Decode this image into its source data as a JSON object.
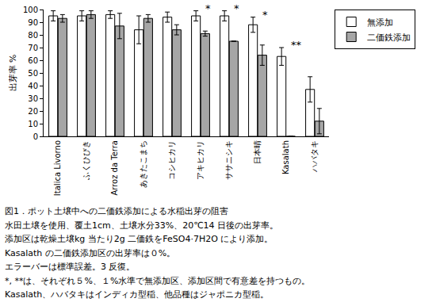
{
  "chart_data": {
    "type": "bar",
    "title": "図1．ポット土壌中への二価鉄添加による水稲出芽の阻害",
    "notes": [
      "水田土壌を使用、覆土1cm、土壌水分33%、20℃14 日後の出芽率。",
      "添加区は乾燥土壌kg 当たり2g 二価鉄をFeSO4·7H2O により添加。",
      "Kasalath の二価鉄添加区の出芽率は０%。",
      "エラーバーは標準誤差。3 反復。",
      "*, **は、それぞれ５%、１%水準で無添加区、添加区間で有意差を持つもの。",
      "Kasalath、ハバタキはインディカ型稲、他品種はジャポニカ型稲。"
    ],
    "y_label": "出芽率 %",
    "categories": [
      "Italica Livorno",
      "ふくひびき",
      "Arroz da Terra",
      "あきたこまち",
      "コシヒカリ",
      "アキヒカリ",
      "ササニシキ",
      "日本晴",
      "Kasalath",
      "ハバタキ"
    ],
    "series": [
      {
        "name": "無添加",
        "color": "#ffffff",
        "values": [
          95,
          95,
          96,
          84,
          94,
          95,
          95,
          88,
          63,
          37
        ],
        "errors": [
          4,
          4,
          3,
          11,
          4,
          4,
          4,
          6,
          7,
          10
        ]
      },
      {
        "name": "二価鉄添加",
        "color": "#a6a6a6",
        "values": [
          93,
          96,
          87,
          93,
          84,
          81,
          75,
          64,
          0,
          12
        ],
        "errors": [
          3,
          3,
          10,
          3,
          4,
          2,
          0,
          8,
          0,
          10
        ]
      }
    ],
    "significance": [
      {
        "category": "アキヒカリ",
        "text": "*"
      },
      {
        "category": "ササニシキ",
        "text": "*"
      },
      {
        "category": "日本晴",
        "text": "*"
      },
      {
        "category": "Kasalath",
        "text": "**"
      }
    ],
    "ylim": [
      0,
      100
    ],
    "yticks": [
      0,
      10,
      20,
      30,
      40,
      50,
      60,
      70,
      80,
      90,
      100
    ],
    "grid": false,
    "legend": "right"
  }
}
